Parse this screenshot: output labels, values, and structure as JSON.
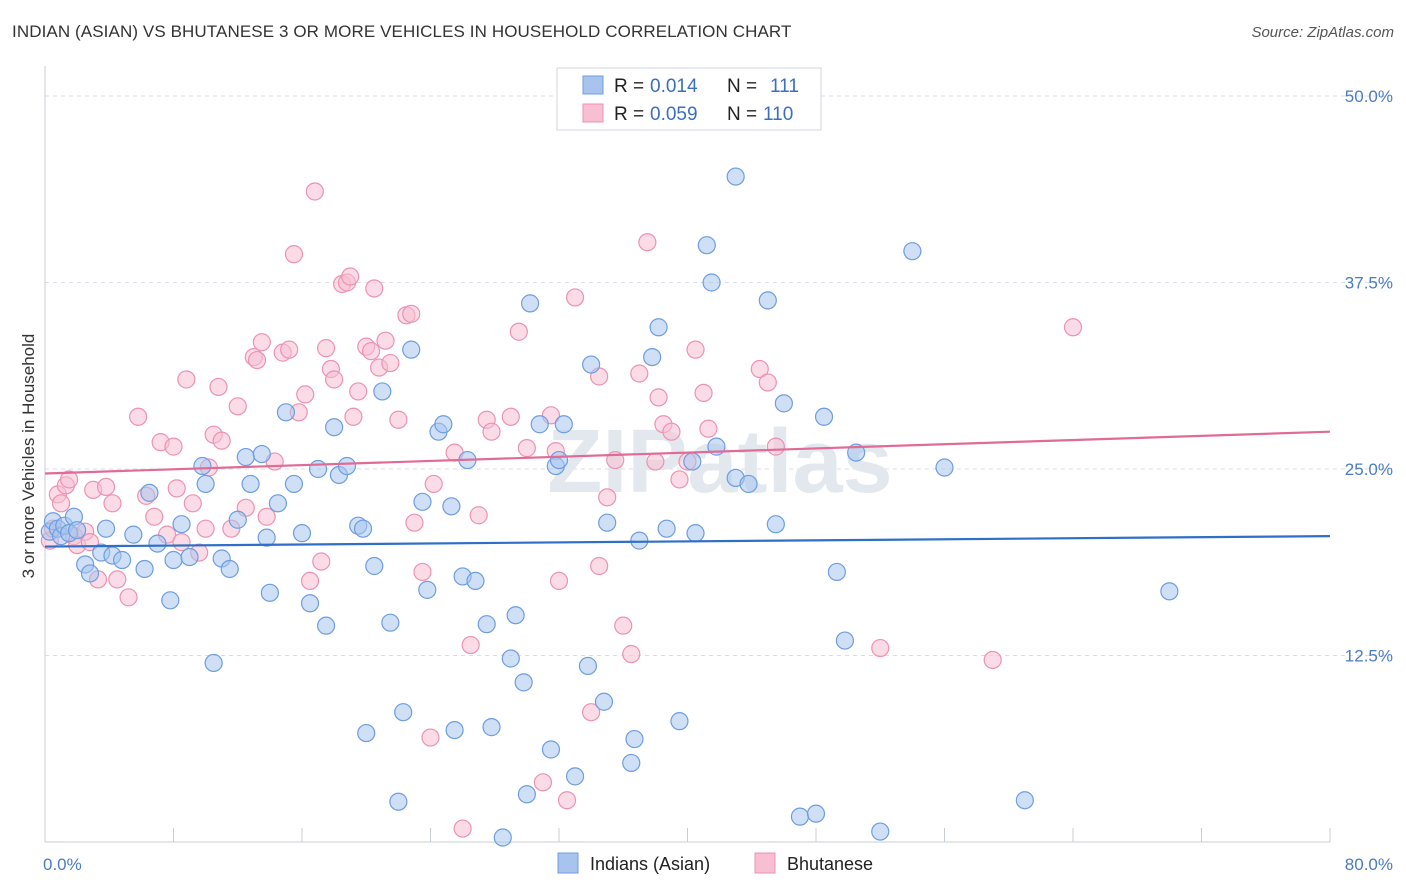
{
  "title": "INDIAN (ASIAN) VS BHUTANESE 3 OR MORE VEHICLES IN HOUSEHOLD CORRELATION CHART",
  "source": "Source: ZipAtlas.com",
  "watermark": "ZIPatlas",
  "colors": {
    "blue_fill": "#a8c4ee",
    "blue_stroke": "#6d9ee0",
    "blue_line": "#2f6fc7",
    "pink_fill": "#f7bfd1",
    "pink_stroke": "#ec93b0",
    "pink_line": "#e06b96",
    "grid": "#d8dde6",
    "tick_text": "#4a7cc4"
  },
  "legend": {
    "rows": [
      {
        "r_label": "R =",
        "r_value": "0.014",
        "n_label": "N =",
        "n_value": "111",
        "series": "blue"
      },
      {
        "r_label": "R =",
        "r_value": "0.059",
        "n_label": "N =",
        "n_value": "110",
        "series": "pink"
      }
    ]
  },
  "chart_data": {
    "type": "scatter",
    "title": "INDIAN (ASIAN) VS BHUTANESE 3 OR MORE VEHICLES IN HOUSEHOLD CORRELATION CHART",
    "xlabel": "",
    "ylabel": "3 or more Vehicles in Household",
    "xlim": [
      0,
      80
    ],
    "ylim": [
      0,
      50
    ],
    "x_tick_labels": [
      "0.0%",
      "80.0%"
    ],
    "y_ticks": [
      12.5,
      25.0,
      37.5,
      50.0
    ],
    "y_tick_labels": [
      "12.5%",
      "25.0%",
      "37.5%",
      "50.0%"
    ],
    "grid": true,
    "legend_position": "top-center",
    "series": [
      {
        "name": "Indians (Asian)",
        "color": "blue",
        "trend": [
          [
            0,
            19.8
          ],
          [
            80,
            20.5
          ]
        ],
        "points": [
          [
            0.3,
            20.8
          ],
          [
            0.5,
            21.5
          ],
          [
            0.8,
            21.0
          ],
          [
            1.0,
            20.5
          ],
          [
            1.2,
            21.2
          ],
          [
            1.5,
            20.7
          ],
          [
            1.8,
            21.8
          ],
          [
            2.0,
            20.9
          ],
          [
            2.5,
            18.6
          ],
          [
            2.8,
            18.0
          ],
          [
            3.5,
            19.4
          ],
          [
            3.8,
            21.0
          ],
          [
            4.2,
            19.2
          ],
          [
            4.8,
            18.9
          ],
          [
            5.5,
            20.6
          ],
          [
            6.2,
            18.3
          ],
          [
            6.5,
            23.4
          ],
          [
            7.0,
            20.0
          ],
          [
            7.8,
            16.2
          ],
          [
            8.0,
            18.9
          ],
          [
            8.5,
            21.3
          ],
          [
            9.0,
            19.1
          ],
          [
            10.0,
            24.0
          ],
          [
            9.8,
            25.2
          ],
          [
            10.5,
            12.0
          ],
          [
            11.0,
            19.0
          ],
          [
            11.5,
            18.3
          ],
          [
            12.0,
            21.6
          ],
          [
            12.5,
            25.8
          ],
          [
            12.8,
            24.0
          ],
          [
            13.5,
            26.0
          ],
          [
            13.8,
            20.4
          ],
          [
            14.0,
            16.7
          ],
          [
            14.5,
            22.7
          ],
          [
            15.0,
            28.8
          ],
          [
            15.5,
            24.0
          ],
          [
            16.0,
            20.7
          ],
          [
            16.5,
            16.0
          ],
          [
            17.0,
            25.0
          ],
          [
            17.5,
            14.5
          ],
          [
            18.0,
            27.8
          ],
          [
            18.3,
            24.6
          ],
          [
            18.8,
            25.2
          ],
          [
            19.5,
            21.2
          ],
          [
            19.8,
            21.0
          ],
          [
            20.5,
            18.5
          ],
          [
            21.0,
            30.2
          ],
          [
            20.0,
            7.3
          ],
          [
            21.5,
            14.7
          ],
          [
            22.0,
            2.7
          ],
          [
            22.3,
            8.7
          ],
          [
            22.8,
            33.0
          ],
          [
            23.5,
            22.8
          ],
          [
            23.8,
            16.9
          ],
          [
            24.5,
            27.5
          ],
          [
            24.8,
            28.0
          ],
          [
            25.3,
            22.5
          ],
          [
            25.5,
            7.5
          ],
          [
            26.0,
            17.8
          ],
          [
            26.3,
            25.6
          ],
          [
            26.8,
            17.5
          ],
          [
            27.5,
            14.6
          ],
          [
            27.8,
            7.7
          ],
          [
            28.5,
            0.3
          ],
          [
            29.0,
            12.3
          ],
          [
            29.3,
            15.2
          ],
          [
            29.8,
            10.7
          ],
          [
            30.2,
            36.1
          ],
          [
            30.0,
            3.2
          ],
          [
            30.8,
            28.0
          ],
          [
            31.5,
            6.2
          ],
          [
            31.8,
            25.2
          ],
          [
            32.0,
            25.6
          ],
          [
            32.3,
            28.0
          ],
          [
            33.0,
            4.4
          ],
          [
            33.8,
            11.8
          ],
          [
            34.0,
            32.0
          ],
          [
            34.8,
            9.4
          ],
          [
            35.0,
            21.4
          ],
          [
            36.5,
            5.3
          ],
          [
            36.7,
            6.9
          ],
          [
            37.0,
            20.2
          ],
          [
            37.8,
            32.5
          ],
          [
            38.2,
            34.5
          ],
          [
            38.7,
            21.0
          ],
          [
            39.5,
            8.1
          ],
          [
            40.5,
            20.7
          ],
          [
            40.3,
            25.5
          ],
          [
            41.2,
            40.0
          ],
          [
            41.5,
            37.5
          ],
          [
            41.8,
            26.5
          ],
          [
            43.0,
            44.6
          ],
          [
            43.0,
            24.4
          ],
          [
            43.8,
            24.0
          ],
          [
            45.0,
            36.3
          ],
          [
            45.5,
            21.3
          ],
          [
            46.0,
            29.4
          ],
          [
            47.0,
            1.7
          ],
          [
            48.0,
            1.9
          ],
          [
            48.5,
            28.5
          ],
          [
            49.3,
            18.1
          ],
          [
            49.8,
            13.5
          ],
          [
            50.5,
            26.1
          ],
          [
            52.0,
            0.7
          ],
          [
            54.0,
            39.6
          ],
          [
            56.0,
            25.1
          ],
          [
            61.0,
            2.8
          ],
          [
            70.0,
            16.8
          ]
        ]
      },
      {
        "name": "Bhutanese",
        "color": "pink",
        "trend": [
          [
            0,
            24.7
          ],
          [
            80,
            27.5
          ]
        ],
        "points": [
          [
            0.3,
            20.2
          ],
          [
            0.5,
            21.0
          ],
          [
            0.8,
            23.3
          ],
          [
            1.0,
            22.7
          ],
          [
            1.3,
            23.9
          ],
          [
            1.5,
            24.3
          ],
          [
            1.8,
            20.5
          ],
          [
            2.0,
            19.9
          ],
          [
            2.5,
            20.8
          ],
          [
            2.8,
            20.1
          ],
          [
            3.0,
            23.6
          ],
          [
            3.3,
            17.6
          ],
          [
            3.8,
            23.8
          ],
          [
            4.2,
            22.7
          ],
          [
            4.5,
            17.6
          ],
          [
            5.2,
            16.4
          ],
          [
            5.8,
            28.5
          ],
          [
            6.3,
            23.2
          ],
          [
            6.8,
            21.8
          ],
          [
            7.2,
            26.8
          ],
          [
            7.6,
            20.6
          ],
          [
            8.0,
            26.5
          ],
          [
            8.5,
            20.1
          ],
          [
            8.8,
            31.0
          ],
          [
            9.2,
            22.7
          ],
          [
            9.6,
            19.4
          ],
          [
            10.0,
            21.0
          ],
          [
            10.2,
            25.1
          ],
          [
            10.5,
            27.3
          ],
          [
            10.8,
            30.5
          ],
          [
            11.0,
            26.9
          ],
          [
            11.6,
            21.0
          ],
          [
            12.0,
            29.2
          ],
          [
            12.5,
            22.4
          ],
          [
            13.0,
            32.5
          ],
          [
            13.2,
            32.3
          ],
          [
            13.5,
            33.5
          ],
          [
            13.8,
            21.8
          ],
          [
            14.3,
            25.5
          ],
          [
            14.8,
            32.8
          ],
          [
            15.2,
            33.0
          ],
          [
            15.5,
            39.4
          ],
          [
            15.8,
            28.8
          ],
          [
            16.2,
            30.0
          ],
          [
            16.5,
            17.5
          ],
          [
            16.8,
            43.6
          ],
          [
            17.2,
            18.8
          ],
          [
            17.5,
            33.1
          ],
          [
            17.8,
            31.7
          ],
          [
            18.0,
            31.0
          ],
          [
            18.5,
            37.4
          ],
          [
            18.8,
            37.5
          ],
          [
            19.0,
            37.9
          ],
          [
            19.2,
            28.5
          ],
          [
            19.5,
            30.2
          ],
          [
            20.0,
            33.2
          ],
          [
            20.3,
            32.9
          ],
          [
            20.5,
            37.1
          ],
          [
            20.8,
            31.8
          ],
          [
            21.2,
            33.6
          ],
          [
            21.5,
            32.1
          ],
          [
            22.0,
            28.3
          ],
          [
            22.5,
            35.3
          ],
          [
            22.8,
            35.4
          ],
          [
            23.0,
            21.4
          ],
          [
            23.5,
            18.1
          ],
          [
            24.0,
            7.0
          ],
          [
            24.2,
            24.0
          ],
          [
            25.5,
            26.1
          ],
          [
            26.0,
            0.9
          ],
          [
            26.5,
            13.2
          ],
          [
            27.0,
            21.9
          ],
          [
            27.5,
            28.3
          ],
          [
            27.8,
            27.5
          ],
          [
            29.0,
            28.5
          ],
          [
            29.5,
            34.2
          ],
          [
            30.0,
            26.4
          ],
          [
            31.0,
            4.0
          ],
          [
            31.5,
            28.6
          ],
          [
            31.8,
            26.2
          ],
          [
            32.0,
            17.5
          ],
          [
            32.5,
            2.8
          ],
          [
            33.0,
            36.5
          ],
          [
            34.0,
            8.7
          ],
          [
            34.5,
            31.2
          ],
          [
            35.0,
            23.1
          ],
          [
            35.5,
            25.6
          ],
          [
            36.0,
            14.5
          ],
          [
            36.5,
            12.6
          ],
          [
            37.0,
            31.4
          ],
          [
            37.5,
            40.2
          ],
          [
            38.0,
            25.5
          ],
          [
            38.2,
            29.8
          ],
          [
            38.5,
            28.0
          ],
          [
            39.0,
            27.5
          ],
          [
            39.5,
            24.3
          ],
          [
            40.0,
            25.5
          ],
          [
            40.5,
            33.0
          ],
          [
            41.0,
            30.1
          ],
          [
            41.3,
            27.7
          ],
          [
            44.5,
            31.7
          ],
          [
            45.0,
            30.8
          ],
          [
            45.5,
            26.5
          ],
          [
            52.0,
            13.0
          ],
          [
            59.0,
            12.2
          ],
          [
            64.0,
            34.5
          ],
          [
            34.5,
            18.5
          ],
          [
            8.2,
            23.7
          ]
        ]
      }
    ]
  },
  "bottom_legend": [
    {
      "label": "Indians (Asian)",
      "series": "blue"
    },
    {
      "label": "Bhutanese",
      "series": "pink"
    }
  ]
}
